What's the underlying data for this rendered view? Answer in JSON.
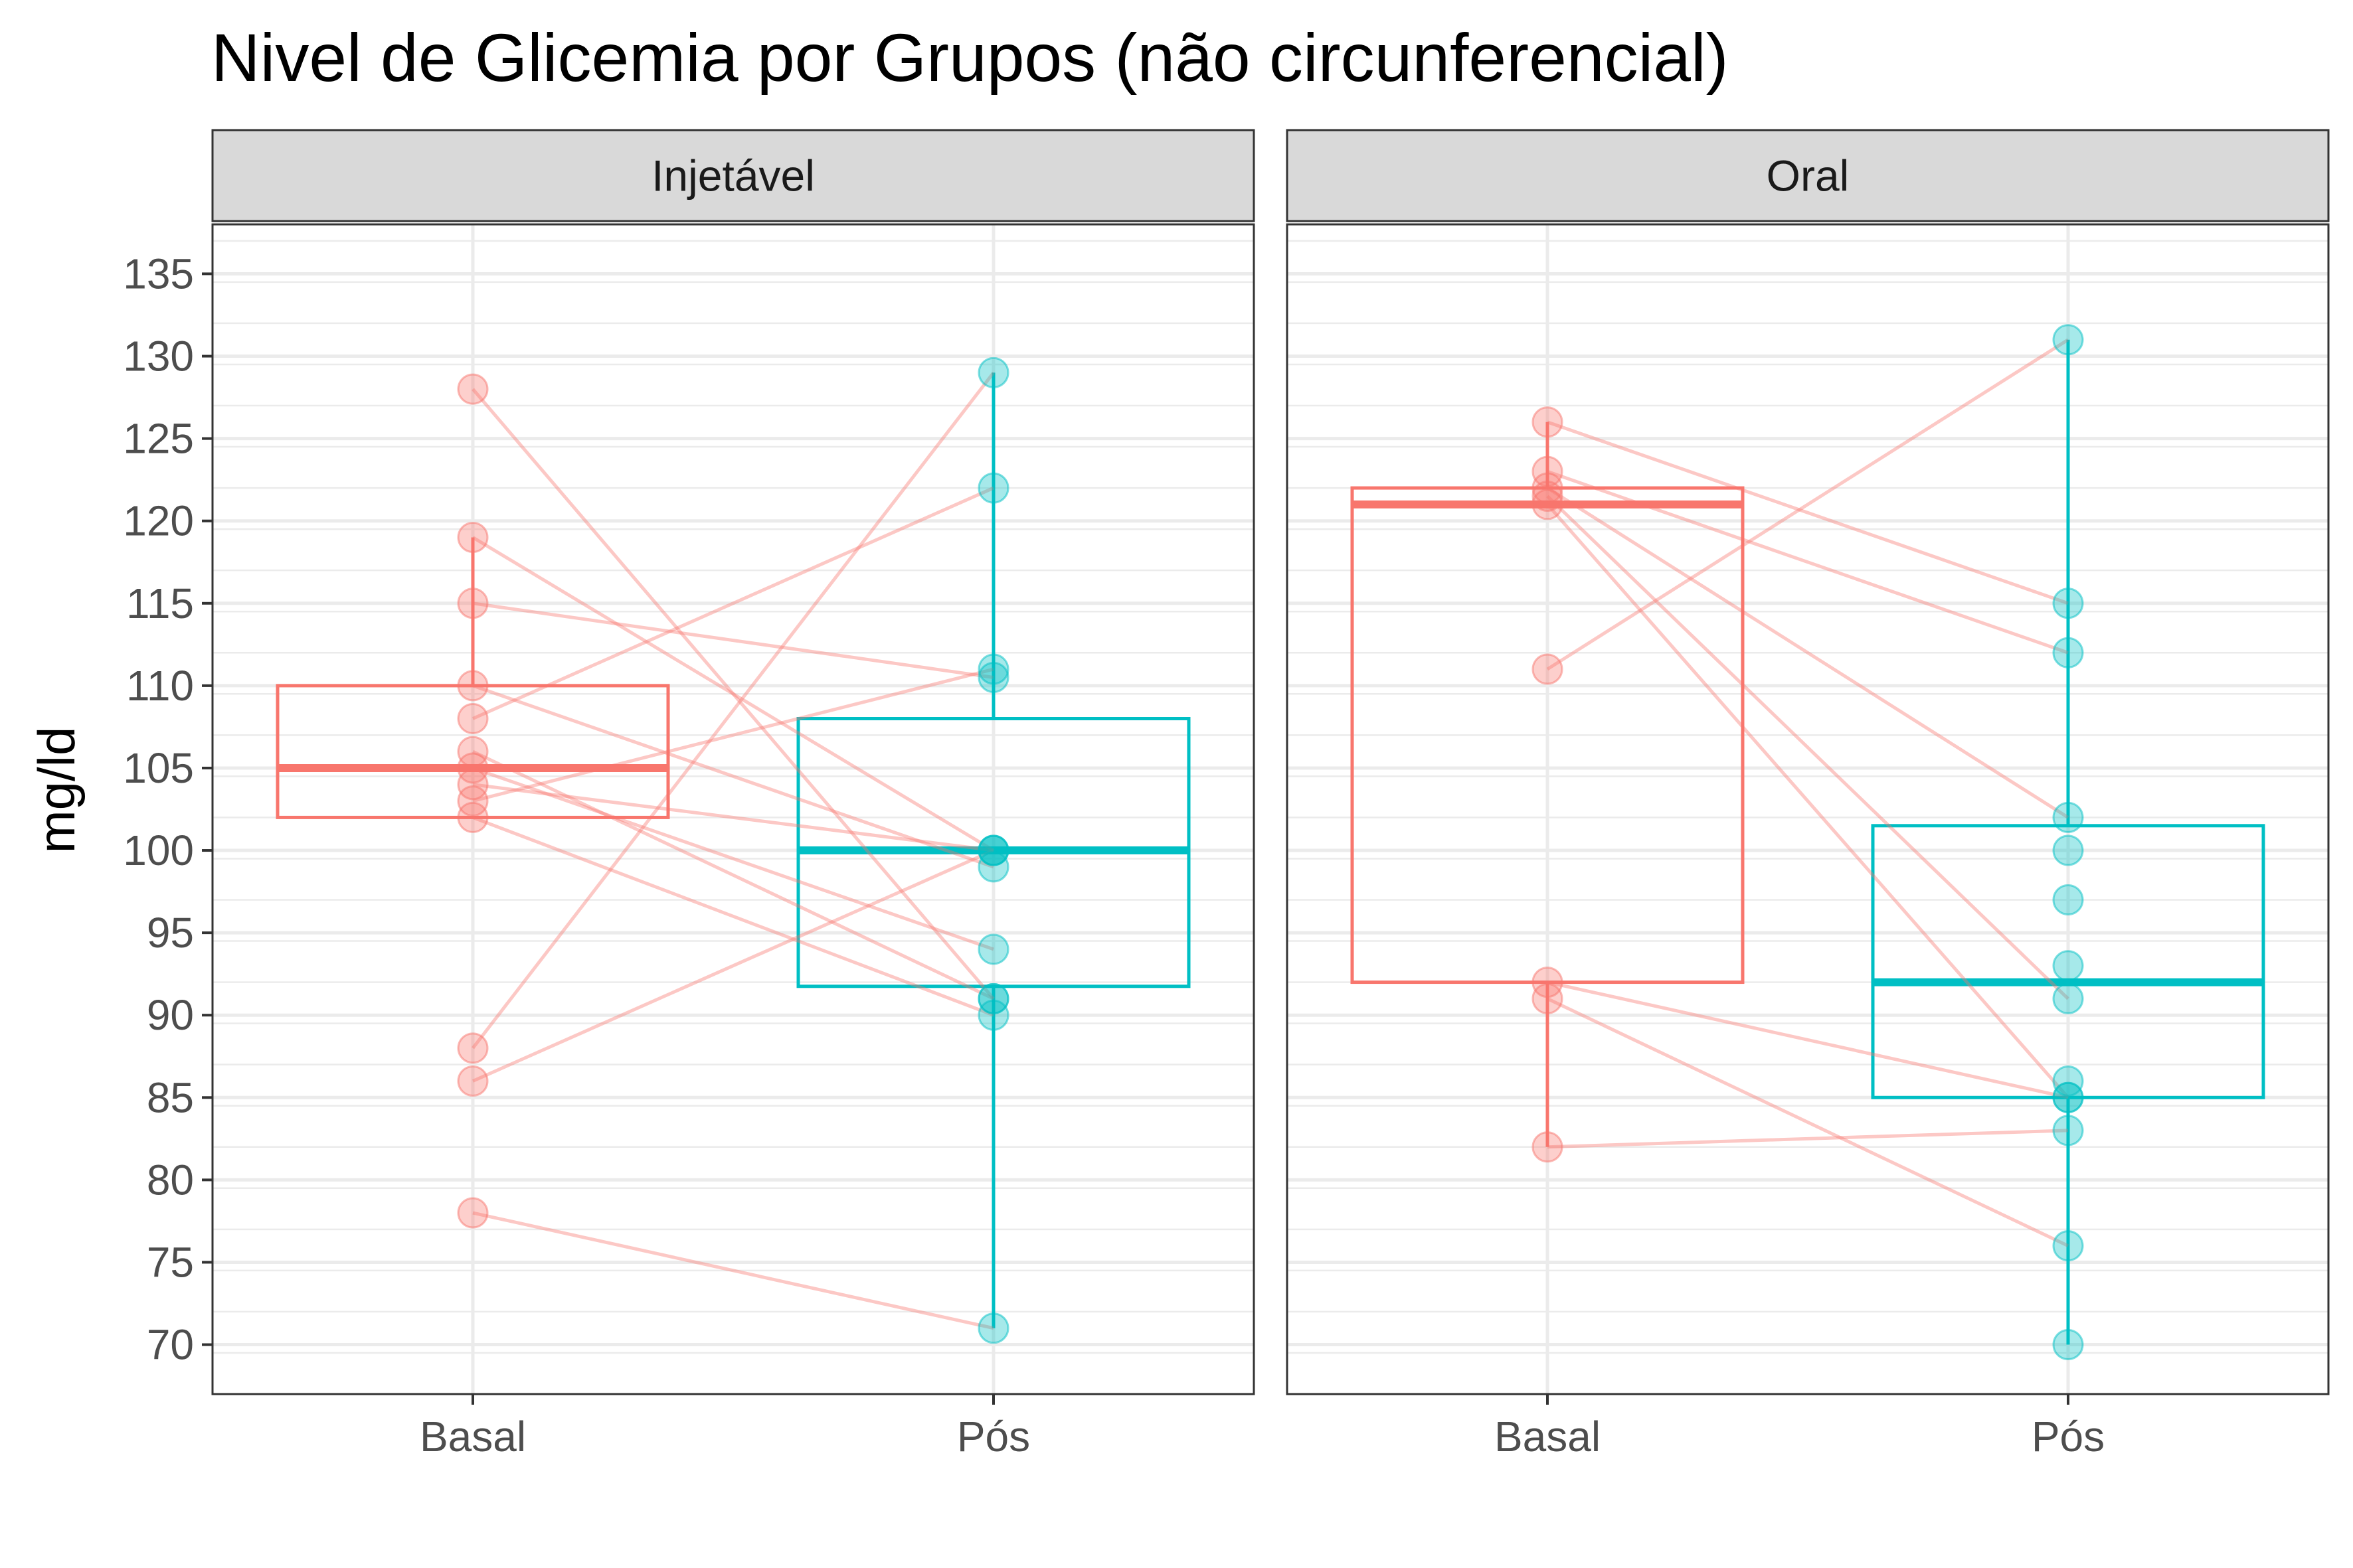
{
  "chart_data": {
    "type": "box-paired",
    "title": "Nivel de Glicemia por Grupos (não circunferencial)",
    "ylabel": "mg/ld",
    "xlabel": "",
    "ylim": [
      67,
      138
    ],
    "y_ticks": [
      70,
      75,
      80,
      85,
      90,
      95,
      100,
      105,
      110,
      115,
      120,
      125,
      130,
      135
    ],
    "categories": [
      "Basal",
      "Pós"
    ],
    "colors": {
      "Basal": "#F8766D",
      "Pós": "#00BFC4"
    },
    "grid": true,
    "legend": "none",
    "panels": [
      {
        "name": "Injetável",
        "boxes": [
          {
            "category": "Basal",
            "min": 102,
            "q1": 102,
            "median": 105,
            "q3": 110,
            "max": 119
          },
          {
            "category": "Pós",
            "min": 71,
            "q1": 91.75,
            "median": 100,
            "q3": 108,
            "max": 129
          }
        ],
        "pairs": [
          [
            128,
            91
          ],
          [
            119,
            100
          ],
          [
            115,
            110.5
          ],
          [
            110,
            99
          ],
          [
            108,
            122
          ],
          [
            106,
            91
          ],
          [
            105,
            94
          ],
          [
            104,
            100
          ],
          [
            103,
            111
          ],
          [
            102,
            90
          ],
          [
            88,
            129
          ],
          [
            86,
            100
          ],
          [
            78,
            71
          ]
        ]
      },
      {
        "name": "Oral",
        "boxes": [
          {
            "category": "Basal",
            "min": 82,
            "q1": 92,
            "median": 121,
            "q3": 122,
            "max": 126
          },
          {
            "category": "Pós",
            "min": 70,
            "q1": 85,
            "median": 92,
            "q3": 101.5,
            "max": 131
          }
        ],
        "pairs": [
          [
            126,
            115
          ],
          [
            123,
            112
          ],
          [
            122,
            102
          ],
          [
            121.5,
            91
          ],
          [
            121,
            85
          ],
          [
            111,
            131
          ],
          [
            92,
            85
          ],
          [
            91,
            76
          ],
          [
            82,
            83
          ]
        ],
        "extra_points": [
          {
            "category": "Pós",
            "value": 100
          },
          {
            "category": "Pós",
            "value": 97
          },
          {
            "category": "Pós",
            "value": 93
          },
          {
            "category": "Pós",
            "value": 86
          },
          {
            "category": "Pós",
            "value": 70
          }
        ]
      }
    ]
  }
}
